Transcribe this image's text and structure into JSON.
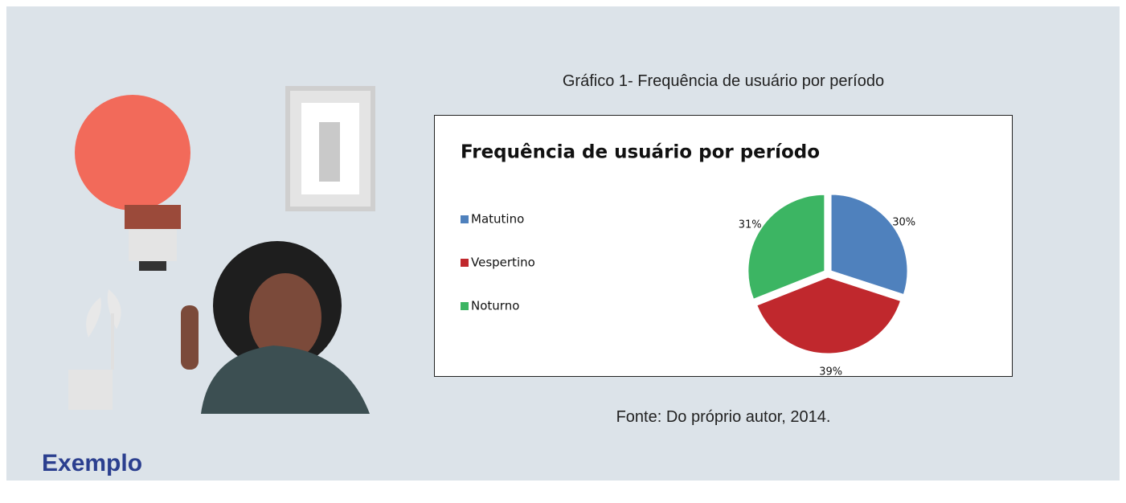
{
  "caption": "Gráfico 1- Frequência de usuário por período",
  "source": "Fonte: Do próprio autor, 2014.",
  "label": "Exemplo",
  "chart_data": {
    "type": "pie",
    "title": "Frequência  de usuário por período",
    "categories": [
      "Matutino",
      "Vespertino",
      "Noturno"
    ],
    "values": [
      30,
      39,
      31
    ],
    "value_labels": [
      "30%",
      "39%",
      "31%"
    ],
    "colors": [
      "#4f81bd",
      "#c0282d",
      "#3cb563"
    ],
    "legend": "left"
  }
}
